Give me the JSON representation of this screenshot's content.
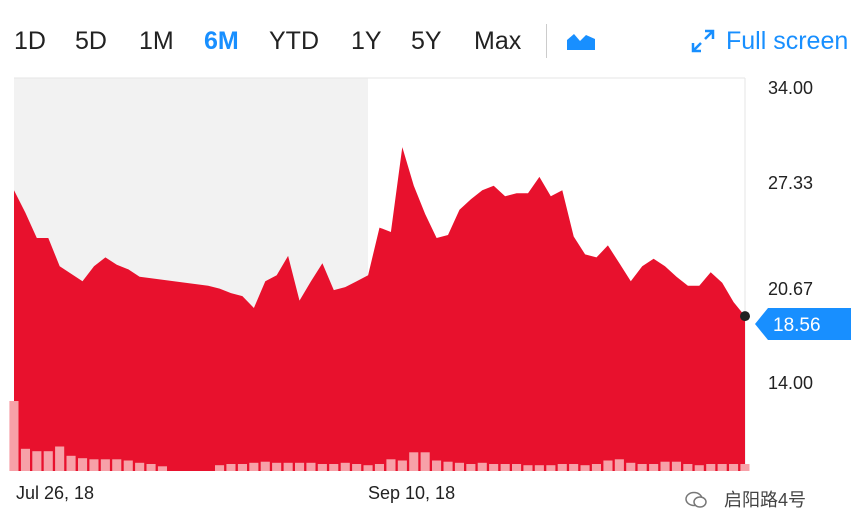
{
  "toolbar": {
    "ranges": [
      "1D",
      "5D",
      "1M",
      "6M",
      "YTD",
      "1Y",
      "5Y",
      "Max"
    ],
    "active_range": "6M",
    "chart_type_icon": "area-chart-icon",
    "fullscreen_label": "Full screen",
    "fullscreen_icon": "expand-icon"
  },
  "watermark": {
    "text": "启阳路4号",
    "icon": "wechat-icon"
  },
  "colors": {
    "area": "#e8112d",
    "volume": "#f7a1a8",
    "accent": "#188fff",
    "shade": "#f2f2f2"
  },
  "chart_data": {
    "type": "area",
    "ylim": [
      7.33,
      34.0
    ],
    "y_ticks": [
      "34.00",
      "27.33",
      "20.67",
      "14.00"
    ],
    "x_labels": [
      "Jul 26, 18",
      "Sep 10, 18"
    ],
    "last_value_label": "18.56",
    "last_value": 18.56,
    "grid": false,
    "price": [
      27.0,
      25.5,
      23.8,
      23.8,
      21.9,
      21.4,
      20.9,
      21.9,
      22.5,
      22.0,
      21.7,
      21.2,
      21.1,
      21.0,
      20.9,
      20.8,
      20.7,
      20.6,
      20.4,
      20.1,
      19.9,
      19.1,
      20.9,
      21.3,
      22.6,
      19.6,
      20.9,
      22.1,
      20.3,
      20.5,
      20.9,
      21.3,
      24.5,
      24.2,
      29.9,
      27.3,
      25.4,
      23.8,
      24.0,
      25.7,
      26.4,
      27.0,
      27.3,
      26.6,
      26.8,
      26.8,
      27.9,
      26.6,
      27.0,
      23.9,
      22.7,
      22.5,
      23.3,
      22.1,
      20.9,
      21.9,
      22.4,
      21.9,
      21.2,
      20.6,
      20.6,
      21.5,
      20.8,
      19.5,
      18.56
    ],
    "volume_max": 6.0,
    "volume": [
      6.0,
      1.9,
      1.7,
      1.7,
      2.1,
      1.3,
      1.1,
      1.0,
      1.0,
      1.0,
      0.9,
      0.7,
      0.6,
      0.4,
      0.0,
      0.0,
      0.0,
      0.0,
      0.5,
      0.6,
      0.6,
      0.7,
      0.8,
      0.7,
      0.7,
      0.7,
      0.7,
      0.6,
      0.6,
      0.7,
      0.6,
      0.5,
      0.6,
      1.0,
      0.9,
      1.6,
      1.6,
      0.9,
      0.8,
      0.7,
      0.6,
      0.7,
      0.6,
      0.6,
      0.6,
      0.5,
      0.5,
      0.5,
      0.6,
      0.6,
      0.5,
      0.6,
      0.9,
      1.0,
      0.7,
      0.6,
      0.6,
      0.8,
      0.8,
      0.6,
      0.5,
      0.6,
      0.6,
      0.6,
      0.6
    ]
  }
}
